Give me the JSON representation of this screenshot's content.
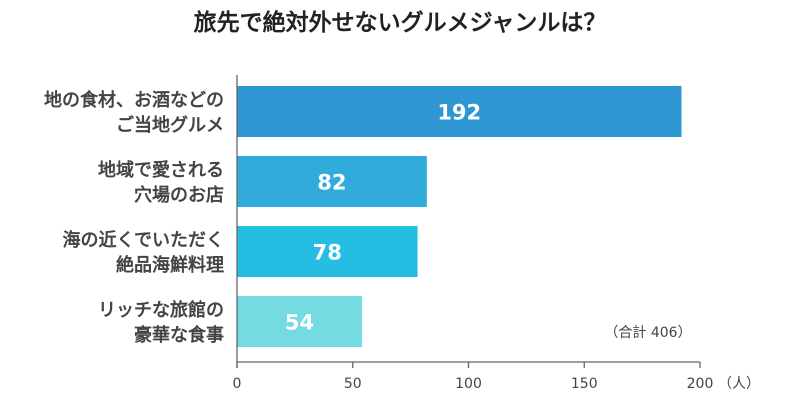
{
  "chart_data": {
    "type": "bar",
    "orientation": "horizontal",
    "title": "旅先で絶対外せないグルメジャンルは？",
    "categories": [
      [
        "地の食材、お酒などの",
        "ご当地グルメ"
      ],
      [
        "地域で愛される",
        "穴場のお店"
      ],
      [
        "海の近くでいただく",
        "絶品海鮮料理"
      ],
      [
        "リッチな旅館の",
        "豪華な食事"
      ]
    ],
    "values": [
      192,
      82,
      78,
      54
    ],
    "value_labels": [
      "192",
      "82",
      "78",
      "54"
    ],
    "bar_colors": [
      "#2e96d2",
      "#31abdc",
      "#26bde2",
      "#74dbe3"
    ],
    "xlim": [
      0,
      200
    ],
    "x_ticks": [
      "0",
      "50",
      "100",
      "150",
      "200"
    ],
    "x_tick_values": [
      0,
      50,
      100,
      150,
      200
    ],
    "x_unit": "（人）",
    "annotation": "（合計 406）",
    "grid": false
  }
}
